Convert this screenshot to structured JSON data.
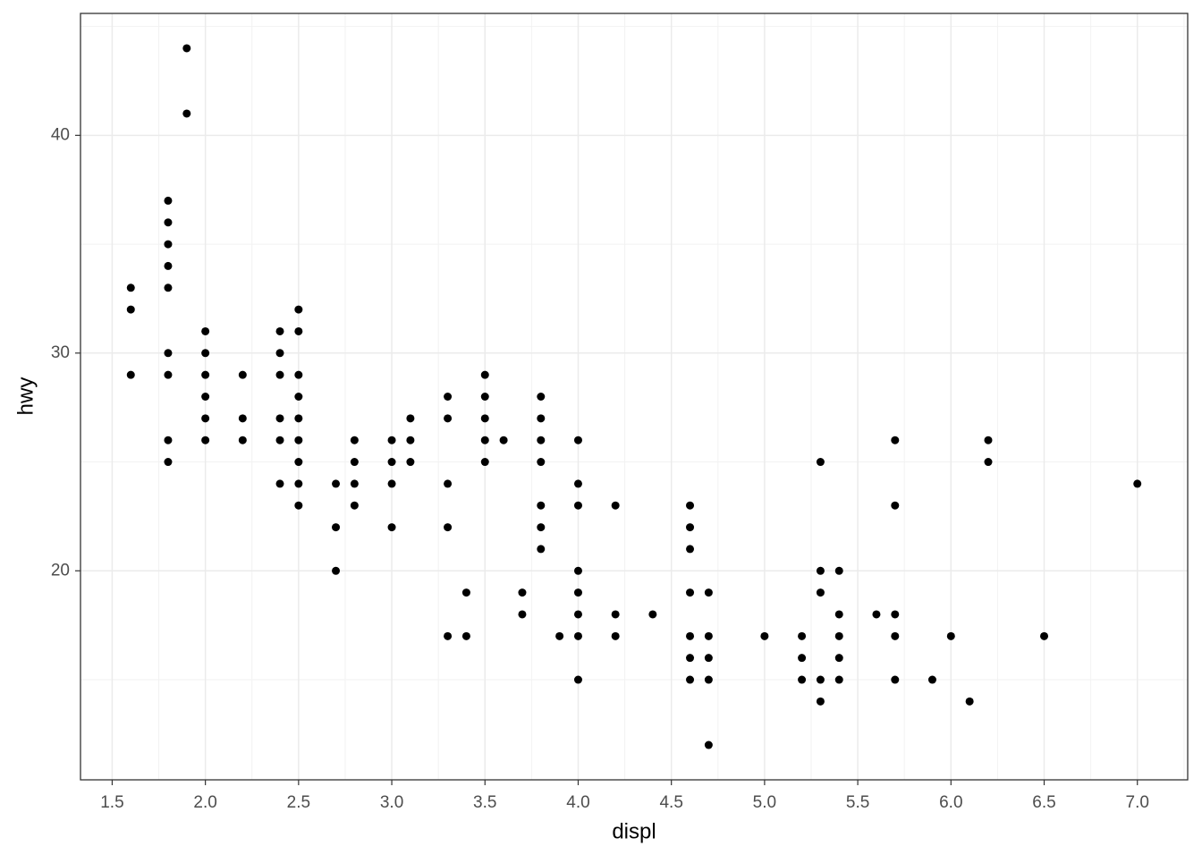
{
  "chart_data": {
    "type": "scatter",
    "x_label": "displ",
    "y_label": "hwy",
    "x": [
      1.6,
      1.6,
      1.6,
      1.8,
      1.8,
      1.8,
      1.8,
      1.8,
      1.8,
      1.8,
      1.8,
      1.8,
      1.9,
      1.9,
      2.0,
      2.0,
      2.0,
      2.0,
      2.0,
      2.0,
      2.2,
      2.2,
      2.2,
      2.4,
      2.4,
      2.4,
      2.4,
      2.4,
      2.4,
      2.5,
      2.5,
      2.5,
      2.5,
      2.5,
      2.5,
      2.5,
      2.5,
      2.5,
      2.7,
      2.7,
      2.7,
      2.8,
      2.8,
      2.8,
      2.8,
      3.0,
      3.0,
      3.0,
      3.0,
      3.1,
      3.1,
      3.1,
      3.3,
      3.3,
      3.3,
      3.3,
      3.3,
      3.4,
      3.4,
      3.5,
      3.5,
      3.5,
      3.5,
      3.5,
      3.6,
      3.7,
      3.7,
      3.8,
      3.8,
      3.8,
      3.8,
      3.8,
      3.8,
      3.8,
      3.9,
      4.0,
      4.0,
      4.0,
      4.0,
      4.0,
      4.0,
      4.0,
      4.0,
      4.2,
      4.2,
      4.2,
      4.4,
      4.6,
      4.6,
      4.6,
      4.6,
      4.6,
      4.6,
      4.6,
      4.7,
      4.7,
      4.7,
      4.7,
      4.7,
      5.0,
      5.2,
      5.2,
      5.2,
      5.3,
      5.3,
      5.3,
      5.3,
      5.3,
      5.4,
      5.4,
      5.4,
      5.4,
      5.4,
      5.6,
      5.7,
      5.7,
      5.7,
      5.7,
      5.7,
      5.9,
      6.0,
      6.1,
      6.2,
      6.2,
      6.5,
      7.0
    ],
    "y": [
      33,
      32,
      29,
      37,
      36,
      35,
      34,
      33,
      30,
      29,
      26,
      25,
      44,
      41,
      31,
      30,
      29,
      28,
      27,
      26,
      29,
      27,
      26,
      31,
      30,
      29,
      27,
      26,
      24,
      32,
      31,
      29,
      28,
      27,
      26,
      25,
      24,
      23,
      24,
      22,
      20,
      26,
      25,
      24,
      23,
      26,
      25,
      24,
      22,
      27,
      26,
      25,
      28,
      27,
      24,
      22,
      17,
      19,
      17,
      29,
      28,
      27,
      26,
      25,
      26,
      19,
      18,
      28,
      27,
      26,
      25,
      23,
      22,
      21,
      17,
      26,
      24,
      23,
      20,
      19,
      18,
      17,
      15,
      23,
      18,
      17,
      18,
      23,
      22,
      21,
      19,
      17,
      16,
      15,
      19,
      17,
      16,
      15,
      12,
      17,
      17,
      16,
      15,
      25,
      20,
      19,
      15,
      14,
      20,
      18,
      17,
      16,
      15,
      18,
      26,
      23,
      18,
      17,
      15,
      15,
      17,
      14,
      26,
      25,
      17,
      24
    ],
    "color": "#000000",
    "xlim": [
      1.33,
      7.27
    ],
    "ylim": [
      10.4,
      45.6
    ],
    "xticks": [
      1.5,
      {
        "value": 2,
        "label": "2.0"
      },
      2.5,
      {
        "value": 3,
        "label": "3.0"
      },
      3.5,
      {
        "value": 4,
        "label": "4.0"
      },
      4.5,
      {
        "value": 5,
        "label": "5.0"
      },
      5.5,
      {
        "value": 6,
        "label": "6.0"
      },
      6.5,
      {
        "value": 7,
        "label": "7.0"
      }
    ],
    "yticks": [
      20,
      30,
      40
    ],
    "x_minor_ticks": [
      1.75,
      2.25,
      2.75,
      3.25,
      3.75,
      4.25,
      4.75,
      5.25,
      5.75,
      6.25,
      6.75,
      7.25
    ],
    "y_minor_ticks": [
      15,
      25,
      35,
      45
    ],
    "grid": true
  }
}
